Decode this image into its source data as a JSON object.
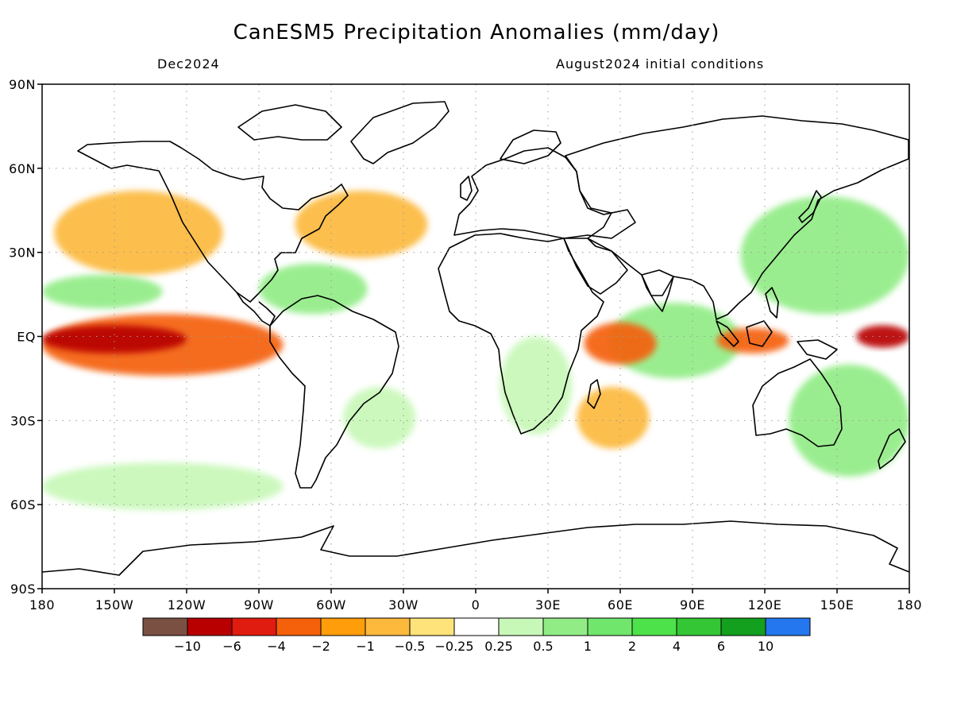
{
  "header": {
    "title": "CanESM5 Precipitation Anomalies (mm/day)",
    "subtitle_left": "Dec2024",
    "subtitle_right": "August2024 initial conditions"
  },
  "axes": {
    "lat_labels": [
      "90N",
      "60N",
      "30N",
      "EQ",
      "30S",
      "60S",
      "90S"
    ],
    "lat_values": [
      90,
      60,
      30,
      0,
      -30,
      -60,
      -90
    ],
    "lon_labels": [
      "180",
      "150W",
      "120W",
      "90W",
      "60W",
      "30W",
      "0",
      "30E",
      "60E",
      "90E",
      "120E",
      "150E",
      "180"
    ],
    "lon_values": [
      -180,
      -150,
      -120,
      -90,
      -60,
      -30,
      0,
      30,
      60,
      90,
      120,
      150,
      180
    ]
  },
  "colorbar": {
    "colors": [
      "#7a5042",
      "#b80000",
      "#e01b0f",
      "#f5600a",
      "#ff9d0a",
      "#fcb93c",
      "#fde37a",
      "#ffffff",
      "#c8f8b8",
      "#92ec86",
      "#70e66c",
      "#4ee24a",
      "#34c634",
      "#12a01e",
      "#2477ee"
    ],
    "labels": [
      "−10",
      "−6",
      "−4",
      "−2",
      "−1",
      "−0.5",
      "−0.25",
      "0.25",
      "0.5",
      "1",
      "2",
      "4",
      "6",
      "10"
    ]
  },
  "map": {
    "projection": "equirectangular",
    "lon_range": [
      -180,
      180
    ],
    "lat_range": [
      -90,
      90
    ],
    "gridlines": "dotted",
    "anomaly_regions": [
      {
        "name": "central-pacific-dry-core",
        "level": -6,
        "lon": [
          -180,
          -120
        ],
        "lat": [
          -6,
          4
        ]
      },
      {
        "name": "west-pacific-dry-core",
        "level": -6,
        "lon": [
          158,
          180
        ],
        "lat": [
          -4,
          4
        ]
      },
      {
        "name": "equatorial-pacific-dry-band",
        "level": -2,
        "lon": [
          -180,
          -80
        ],
        "lat": [
          -14,
          8
        ]
      },
      {
        "name": "north-pacific-dry",
        "level": -1,
        "lon": [
          -175,
          -105
        ],
        "lat": [
          22,
          52
        ]
      },
      {
        "name": "north-atlantic-dry",
        "level": -1,
        "lon": [
          -75,
          -20
        ],
        "lat": [
          28,
          52
        ]
      },
      {
        "name": "indian-ocean-dry",
        "level": -2,
        "lon": [
          45,
          75
        ],
        "lat": [
          -10,
          5
        ]
      },
      {
        "name": "south-indian-dry",
        "level": -1,
        "lon": [
          42,
          72
        ],
        "lat": [
          -40,
          -18
        ]
      },
      {
        "name": "maritime-continent-dry",
        "level": -2,
        "lon": [
          100,
          130
        ],
        "lat": [
          -6,
          3
        ]
      },
      {
        "name": "north-pacific-wet",
        "level": 1,
        "lon": [
          -180,
          -130
        ],
        "lat": [
          10,
          22
        ]
      },
      {
        "name": "caribbean-wet",
        "level": 1,
        "lon": [
          -90,
          -45
        ],
        "lat": [
          8,
          26
        ]
      },
      {
        "name": "west-pacific-wet",
        "level": 1,
        "lon": [
          110,
          180
        ],
        "lat": [
          8,
          50
        ]
      },
      {
        "name": "south-pacific-wet",
        "level": 1,
        "lon": [
          130,
          180
        ],
        "lat": [
          -50,
          -10
        ]
      },
      {
        "name": "indian-ocean-wet",
        "level": 1,
        "lon": [
          55,
          110
        ],
        "lat": [
          -15,
          12
        ]
      },
      {
        "name": "africa-wet",
        "level": 0.5,
        "lon": [
          10,
          40
        ],
        "lat": [
          -35,
          0
        ]
      },
      {
        "name": "south-atlantic-wet",
        "level": 0.5,
        "lon": [
          -55,
          -25
        ],
        "lat": [
          -40,
          -18
        ]
      },
      {
        "name": "southern-ocean-wet",
        "level": 0.5,
        "lon": [
          -180,
          -80
        ],
        "lat": [
          -62,
          -45
        ]
      }
    ]
  }
}
